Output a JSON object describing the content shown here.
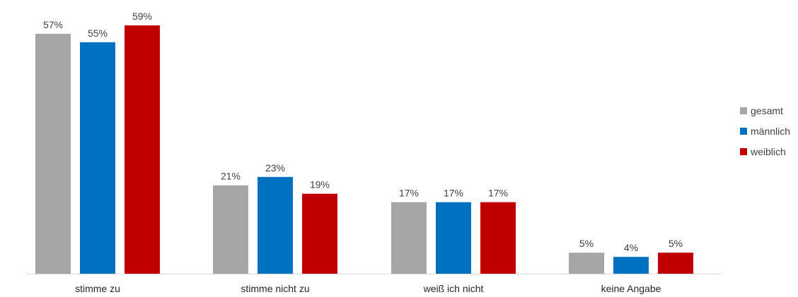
{
  "chart_data": {
    "type": "bar",
    "categories": [
      "stimme zu",
      "stimme nicht zu",
      "weiß ich nicht",
      "keine Angabe"
    ],
    "series": [
      {
        "name": "gesamt",
        "color": "#a6a6a6",
        "values": [
          57,
          21,
          17,
          5
        ],
        "labels": [
          "57%",
          "21%",
          "17%",
          "5%"
        ]
      },
      {
        "name": "männlich",
        "color": "#0070c0",
        "values": [
          55,
          23,
          17,
          4
        ],
        "labels": [
          "55%",
          "23%",
          "17%",
          "4%"
        ]
      },
      {
        "name": "weiblich",
        "color": "#c00000",
        "values": [
          59,
          19,
          17,
          5
        ],
        "labels": [
          "59%",
          "19%",
          "17%",
          "5%"
        ]
      }
    ],
    "ylim": [
      0,
      64
    ],
    "grid": false,
    "legend": "right",
    "axis_color": "#d9d9d9"
  }
}
